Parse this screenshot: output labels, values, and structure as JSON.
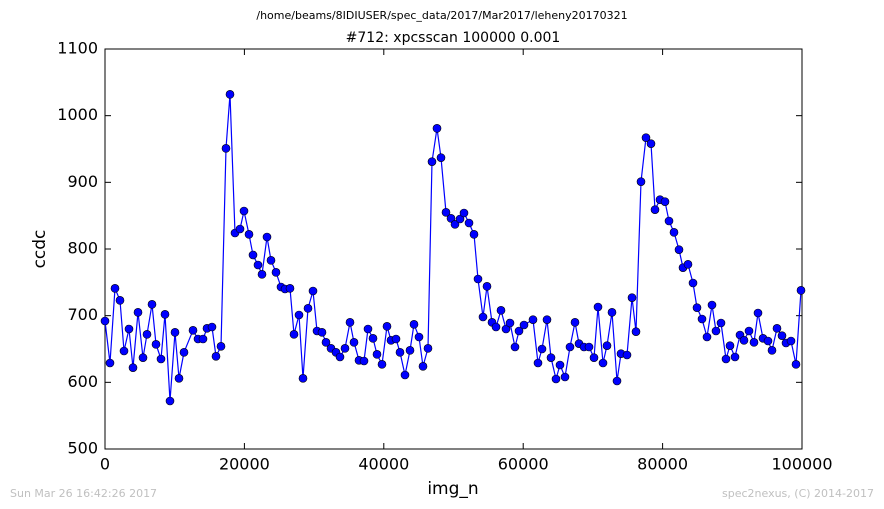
{
  "chart_data": {
    "type": "line",
    "suptitle": "/home/beams/8IDIUSER/spec_data/2017/Mar2017/leheny20170321",
    "title": "#712: xpcsscan 100000 0.001",
    "xlabel": "img_n",
    "ylabel": "ccdc",
    "footer_left": "Sun Mar 26 16:42:26 2017",
    "footer_right": "spec2nexus, (C) 2014-2017",
    "xlim": [
      0,
      100000
    ],
    "xticks": [
      0,
      20000,
      40000,
      60000,
      80000,
      100000
    ],
    "ylim": [
      500,
      1100
    ],
    "yticks": [
      500,
      600,
      700,
      800,
      900,
      1000,
      1100
    ],
    "grid": false,
    "x": [
      0,
      717,
      1435,
      2152,
      2726,
      3443,
      4017,
      4735,
      5452,
      6026,
      6743,
      7317,
      8034,
      8608,
      9326,
      10043,
      10617,
      11334,
      12626,
      13343,
      14060,
      14634,
      15351,
      15925,
      16643,
      17360,
      17934,
      18651,
      19369,
      19943,
      20660,
      21234,
      21951,
      22525,
      23242,
      23816,
      24533,
      25251,
      25825,
      26542,
      27116,
      27834,
      28407,
      29125,
      29842,
      30416,
      31133,
      31707,
      32425,
      33142,
      33716,
      34433,
      35151,
      35725,
      36442,
      37159,
      37733,
      38451,
      39024,
      39742,
      40459,
      41033,
      41750,
      42324,
      43041,
      43759,
      44333,
      45050,
      45624,
      46341,
      46915,
      47633,
      48207,
      48924,
      49641,
      50215,
      50933,
      51506,
      52224,
      52941,
      53515,
      54232,
      54806,
      55524,
      56098,
      56815,
      57532,
      58106,
      58824,
      59398,
      60115,
      61406,
      62123,
      62697,
      63415,
      63989,
      64706,
      65280,
      65997,
      66714,
      67432,
      68006,
      68723,
      69440,
      70158,
      70732,
      71449,
      72023,
      72740,
      73458,
      74032,
      74892,
      75610,
      76184,
      76901,
      77618,
      78336,
      78910,
      79627,
      80344,
      80918,
      81635,
      82353,
      82927,
      83644,
      84362,
      84935,
      85653,
      86370,
      87088,
      87661,
      88379,
      89096,
      89670,
      90387,
      91105,
      91679,
      92396,
      93113,
      93687,
      94405,
      95122,
      95696,
      96413,
      97131,
      97705,
      98422,
      99139,
      99857
    ],
    "series": [
      {
        "name": "ccdc",
        "color": "#0000ff",
        "marker_edge": "#000000",
        "values": [
          692,
          629,
          741,
          723,
          647,
          680,
          622,
          705,
          637,
          672,
          717,
          657,
          635,
          702,
          572,
          675,
          606,
          645,
          678,
          665,
          665,
          681,
          683,
          639,
          654,
          951,
          1032,
          824,
          830,
          857,
          822,
          791,
          776,
          762,
          818,
          783,
          765,
          743,
          740,
          741,
          672,
          701,
          606,
          711,
          737,
          677,
          675,
          660,
          651,
          645,
          638,
          651,
          690,
          660,
          633,
          632,
          680,
          666,
          642,
          627,
          684,
          663,
          665,
          645,
          611,
          648,
          687,
          668,
          624,
          651,
          931,
          981,
          937,
          855,
          846,
          837,
          845,
          854,
          839,
          822,
          755,
          698,
          744,
          690,
          683,
          708,
          680,
          689,
          653,
          677,
          686,
          694,
          629,
          650,
          694,
          637,
          605,
          626,
          608,
          653,
          690,
          658,
          653,
          653,
          637,
          713,
          629,
          655,
          705,
          602,
          643,
          641,
          727,
          676,
          901,
          967,
          958,
          859,
          874,
          871,
          842,
          825,
          799,
          772,
          777,
          749,
          712,
          695,
          668,
          716,
          677,
          689,
          635,
          655,
          638,
          671,
          663,
          677,
          660,
          704,
          666,
          662,
          648,
          681,
          670,
          659,
          662,
          627,
          738
        ]
      }
    ]
  }
}
